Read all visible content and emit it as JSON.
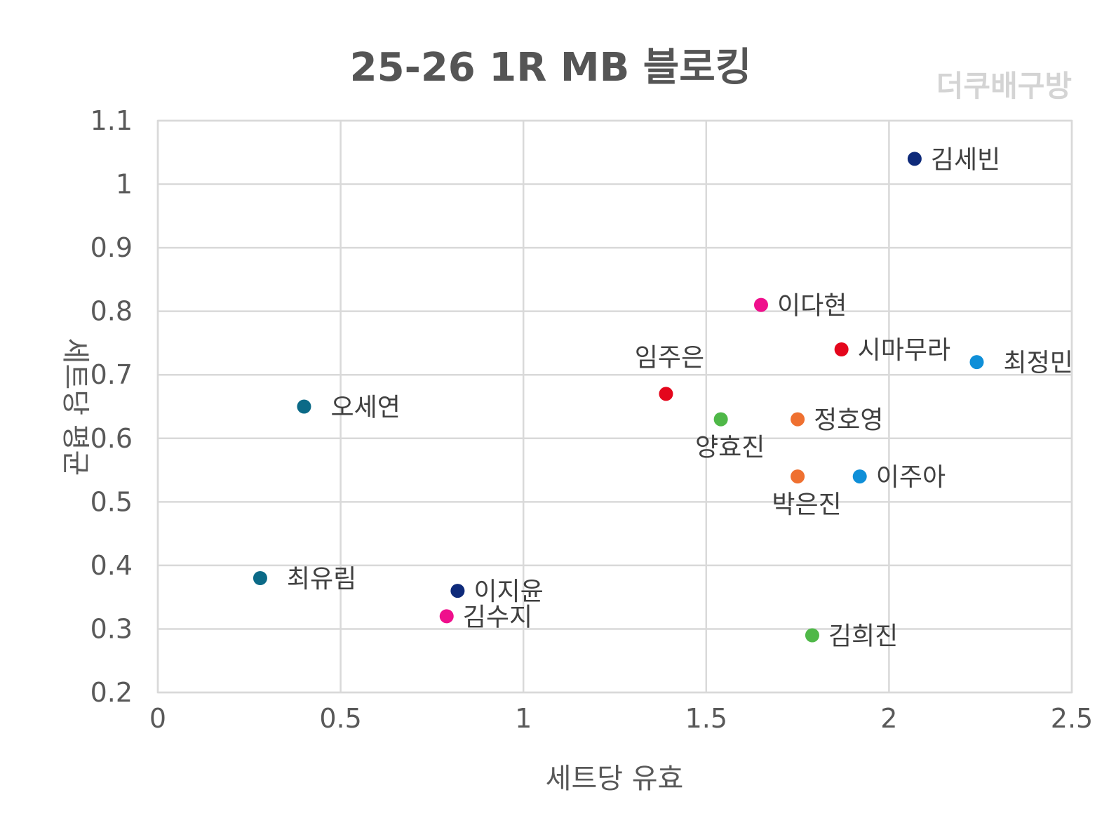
{
  "chart_data": {
    "type": "scatter",
    "title": "25-26  1R MB 블로킹",
    "watermark": "더쿠배구방",
    "xlabel": "세트당 유효",
    "ylabel": "세트당 평균",
    "xlim": [
      0,
      2.5
    ],
    "ylim": [
      0.2,
      1.1
    ],
    "x_ticks": [
      "0",
      "0.5",
      "1",
      "1.5",
      "2",
      "2.5"
    ],
    "y_ticks": [
      "1.1",
      "1",
      "0.9",
      "0.8",
      "0.7",
      "0.6",
      "0.5",
      "0.4",
      "0.3",
      "0.2"
    ],
    "grid": true,
    "points": [
      {
        "name": "김세빈",
        "x": 2.07,
        "y": 1.04,
        "color": "#0e2a7a",
        "label_pos": "right"
      },
      {
        "name": "이다현",
        "x": 1.65,
        "y": 0.81,
        "color": "#ef0f8c",
        "label_pos": "right"
      },
      {
        "name": "시마무라",
        "x": 1.87,
        "y": 0.74,
        "color": "#e4061c",
        "label_pos": "right"
      },
      {
        "name": "최정민",
        "x": 2.24,
        "y": 0.72,
        "color": "#0f8fd8",
        "label_pos": "right-far"
      },
      {
        "name": "임주은",
        "x": 1.39,
        "y": 0.67,
        "color": "#e4061c",
        "label_pos": "above"
      },
      {
        "name": "오세연",
        "x": 0.4,
        "y": 0.65,
        "color": "#0b6a87",
        "label_pos": "right-far"
      },
      {
        "name": "양효진",
        "x": 1.54,
        "y": 0.63,
        "color": "#4fb848",
        "label_pos": "below"
      },
      {
        "name": "정호영",
        "x": 1.75,
        "y": 0.63,
        "color": "#ef7030",
        "label_pos": "right"
      },
      {
        "name": "박은진",
        "x": 1.75,
        "y": 0.54,
        "color": "#ef7030",
        "label_pos": "below"
      },
      {
        "name": "이주아",
        "x": 1.92,
        "y": 0.54,
        "color": "#0f8fd8",
        "label_pos": "right"
      },
      {
        "name": "최유림",
        "x": 0.28,
        "y": 0.38,
        "color": "#0b6a87",
        "label_pos": "right-far"
      },
      {
        "name": "이지윤",
        "x": 0.82,
        "y": 0.36,
        "color": "#0e2a7a",
        "label_pos": "right"
      },
      {
        "name": "김수지",
        "x": 0.79,
        "y": 0.32,
        "color": "#ef0f8c",
        "label_pos": "right"
      },
      {
        "name": "김희진",
        "x": 1.79,
        "y": 0.29,
        "color": "#4fb848",
        "label_pos": "right"
      }
    ]
  }
}
